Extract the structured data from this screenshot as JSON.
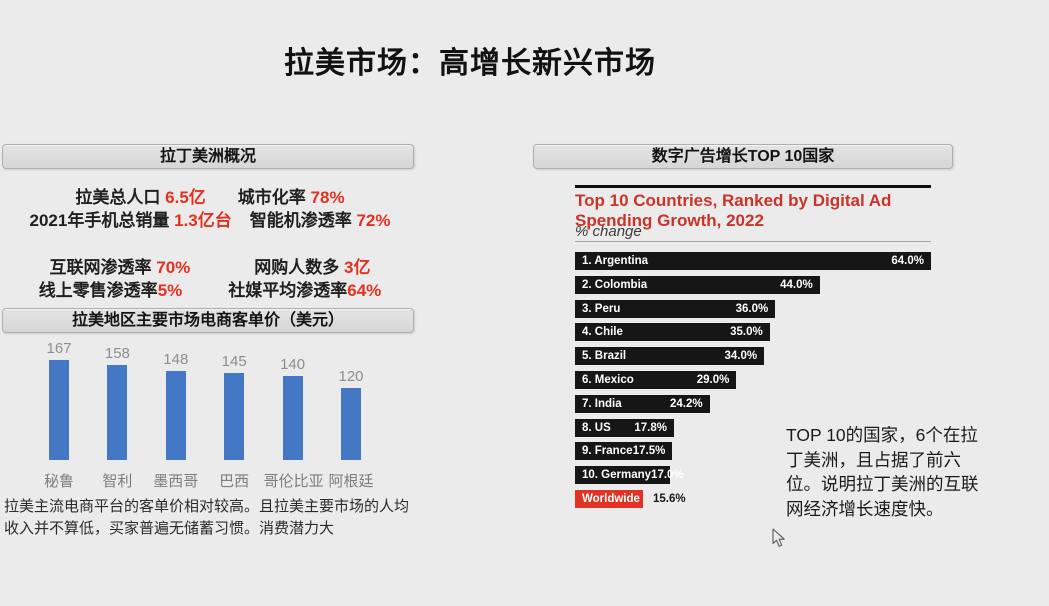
{
  "title": "拉美市场：高增长新兴市场",
  "left_panel": {
    "overview_header": "拉丁美洲概况",
    "stat_blocks": [
      {
        "lines": [
          {
            "l1": "拉美总人口 ",
            "v1": "6.5亿",
            "l2": "城市化率 ",
            "v2": "78%"
          },
          {
            "l1": "2021年手机总销量 ",
            "v1": "1.3亿台",
            "l2": "智能机渗透率 ",
            "v2": "72%"
          }
        ]
      },
      {
        "lines": [
          {
            "l1": "互联网渗透率 ",
            "v1": "70%",
            "l2": "网购人数多 ",
            "v2": "3亿"
          },
          {
            "l1": "线上零售渗透率",
            "v1": "5%",
            "l2": "社媒平均渗透率",
            "v2": "64%"
          }
        ]
      }
    ],
    "chart_header": "拉美地区主要市场电商客单价（美元）",
    "note": "拉美主流电商平台的客单价相对较高。且拉美主要市场的人均收入并不算低，买家普遍无储蓄习惯。消费潜力大"
  },
  "right_panel": {
    "header": "数字广告增长TOP 10国家",
    "annotation": "TOP 10的国家，6个在拉丁美洲，且占据了前六位。说明拉丁美洲的互联网经济增长速度快。"
  },
  "chart_data": [
    {
      "type": "bar",
      "orientation": "vertical",
      "title": "拉美地区主要市场电商客单价（美元）",
      "categories": [
        "秘鲁",
        "智利",
        "墨西哥",
        "巴西",
        "哥伦比亚",
        "阿根廷"
      ],
      "values": [
        167,
        158,
        148,
        145,
        140,
        120
      ],
      "data_labels": true,
      "grid": false,
      "axis_lines": false,
      "bar_color": "#4477c4",
      "label_color": "#8e8e8e"
    },
    {
      "type": "bar",
      "orientation": "horizontal",
      "title": "Top 10 Countries, Ranked by Digital Ad Spending Growth, 2022",
      "subtitle": "% change",
      "categories": [
        "1. Argentina",
        "2. Colombia",
        "3. Peru",
        "4. Chile",
        "5. Brazil",
        "6. Mexico",
        "7. India",
        "8. US",
        "9. France",
        "10. Germany",
        "Worldwide"
      ],
      "values": [
        64.0,
        44.0,
        36.0,
        35.0,
        34.0,
        29.0,
        24.2,
        17.8,
        17.5,
        17.0,
        15.6
      ],
      "value_labels": [
        "64.0%",
        "44.0%",
        "36.0%",
        "35.0%",
        "34.0%",
        "29.0%",
        "24.2%",
        "17.8%",
        "17.5%",
        "17.0%",
        "15.6%"
      ],
      "xlim": [
        0,
        64
      ],
      "bar_color": "#161616",
      "highlight_category": "Worldwide",
      "highlight_color": "#e23125",
      "highlight_label_outside": true
    }
  ]
}
